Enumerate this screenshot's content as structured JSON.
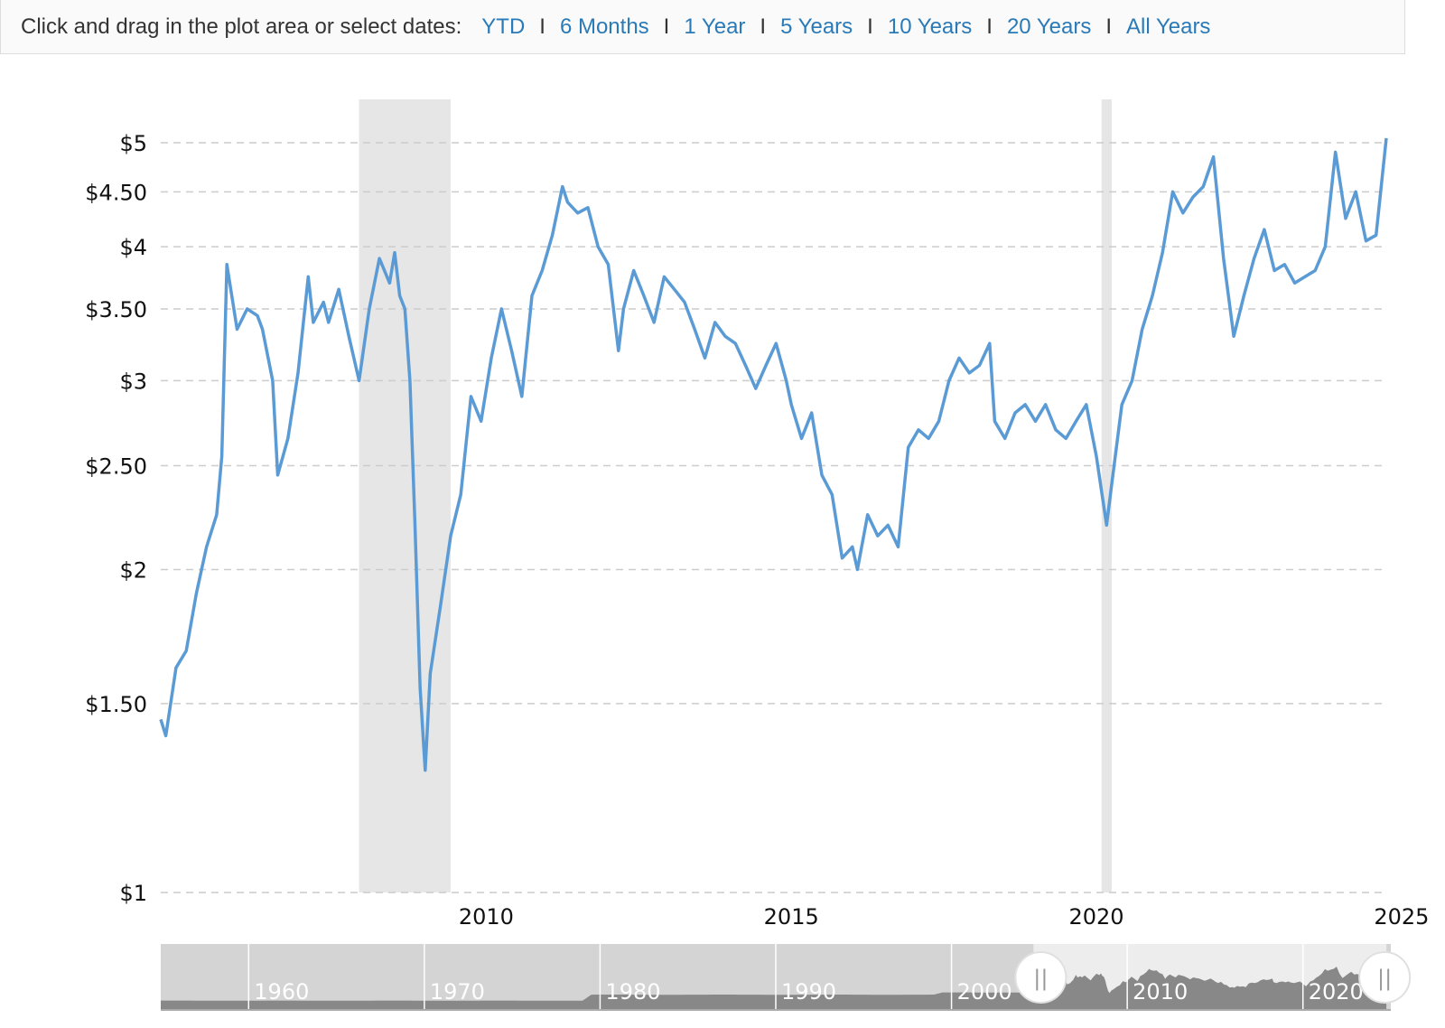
{
  "toolbar": {
    "prompt": "Click and drag in the plot area or select dates:",
    "ranges": [
      "YTD",
      "6 Months",
      "1 Year",
      "5 Years",
      "10 Years",
      "20 Years",
      "All Years"
    ]
  },
  "colors": {
    "line": "#5b9bd5",
    "recession": "#e6e6e6",
    "grid": "#cccccc",
    "navigator_bg": "#d4d4d4",
    "navigator_selected": "#ededed",
    "navigator_area": "#888888",
    "link": "#2a7ab8"
  },
  "chart_data": {
    "type": "line",
    "title": "",
    "xlabel": "",
    "ylabel": "",
    "y_scale": "log",
    "ylim": [
      1,
      5.1
    ],
    "xlim": [
      "2004-09-01",
      "2024-10-01"
    ],
    "yticks": [
      1,
      1.5,
      2,
      2.5,
      3,
      3.5,
      4,
      4.5,
      5
    ],
    "ytick_labels": [
      "$1",
      "$1.50",
      "$2",
      "$2.50",
      "$3",
      "$3.50",
      "$4",
      "$4.50",
      "$5"
    ],
    "xticks": [
      "2010",
      "2015",
      "2020",
      "2025"
    ],
    "grid": "horizontal dashed",
    "recessions": [
      [
        "2007-12-01",
        "2009-06-01"
      ],
      [
        "2020-02-01",
        "2020-04-01"
      ]
    ],
    "series": [
      {
        "x": [
          "2004-09",
          "2004-10",
          "2004-12",
          "2005-02",
          "2005-04",
          "2005-06",
          "2005-08",
          "2005-09",
          "2005-10",
          "2005-12",
          "2006-02",
          "2006-04",
          "2006-05",
          "2006-07",
          "2006-08",
          "2006-10",
          "2006-12",
          "2007-02",
          "2007-03",
          "2007-05",
          "2007-06",
          "2007-08",
          "2007-10",
          "2007-12",
          "2008-02",
          "2008-04",
          "2008-06",
          "2008-07",
          "2008-08",
          "2008-09",
          "2008-10",
          "2008-11",
          "2008-12",
          "2009-01",
          "2009-02",
          "2009-04",
          "2009-06",
          "2009-08",
          "2009-10",
          "2009-12",
          "2010-02",
          "2010-04",
          "2010-06",
          "2010-08",
          "2010-10",
          "2010-12",
          "2011-02",
          "2011-04",
          "2011-05",
          "2011-07",
          "2011-09",
          "2011-11",
          "2012-01",
          "2012-03",
          "2012-04",
          "2012-06",
          "2012-08",
          "2012-10",
          "2012-12",
          "2013-02",
          "2013-04",
          "2013-06",
          "2013-08",
          "2013-10",
          "2013-12",
          "2014-02",
          "2014-04",
          "2014-06",
          "2014-08",
          "2014-10",
          "2014-12",
          "2015-01",
          "2015-03",
          "2015-05",
          "2015-07",
          "2015-09",
          "2015-11",
          "2016-01",
          "2016-02",
          "2016-04",
          "2016-06",
          "2016-08",
          "2016-10",
          "2016-12",
          "2017-02",
          "2017-04",
          "2017-06",
          "2017-08",
          "2017-10",
          "2017-12",
          "2018-02",
          "2018-04",
          "2018-05",
          "2018-07",
          "2018-09",
          "2018-11",
          "2019-01",
          "2019-03",
          "2019-05",
          "2019-07",
          "2019-09",
          "2019-11",
          "2020-01",
          "2020-03",
          "2020-04",
          "2020-06",
          "2020-08",
          "2020-10",
          "2020-12",
          "2021-02",
          "2021-04",
          "2021-06",
          "2021-08",
          "2021-10",
          "2021-12",
          "2022-02",
          "2022-04",
          "2022-06",
          "2022-08",
          "2022-10",
          "2022-12",
          "2023-02",
          "2023-04",
          "2023-06",
          "2023-08",
          "2023-10",
          "2023-12",
          "2024-02",
          "2024-04",
          "2024-06",
          "2024-08",
          "2024-10"
        ],
        "values": [
          1.45,
          1.4,
          1.62,
          1.68,
          1.9,
          2.1,
          2.25,
          2.55,
          3.85,
          3.35,
          3.5,
          3.45,
          3.35,
          3.0,
          2.45,
          2.65,
          3.05,
          3.75,
          3.4,
          3.55,
          3.4,
          3.65,
          3.3,
          3.0,
          3.5,
          3.9,
          3.7,
          3.95,
          3.6,
          3.5,
          3.0,
          2.2,
          1.55,
          1.3,
          1.6,
          1.85,
          2.15,
          2.35,
          2.9,
          2.75,
          3.15,
          3.5,
          3.2,
          2.9,
          3.6,
          3.8,
          4.1,
          4.55,
          4.4,
          4.3,
          4.35,
          4.0,
          3.85,
          3.2,
          3.5,
          3.8,
          3.6,
          3.4,
          3.75,
          3.65,
          3.55,
          3.35,
          3.15,
          3.4,
          3.3,
          3.25,
          3.1,
          2.95,
          3.1,
          3.25,
          3.0,
          2.85,
          2.65,
          2.8,
          2.45,
          2.35,
          2.05,
          2.1,
          2.0,
          2.25,
          2.15,
          2.2,
          2.1,
          2.6,
          2.7,
          2.65,
          2.75,
          3.0,
          3.15,
          3.05,
          3.1,
          3.25,
          2.75,
          2.65,
          2.8,
          2.85,
          2.75,
          2.85,
          2.7,
          2.65,
          2.75,
          2.85,
          2.55,
          2.2,
          2.4,
          2.85,
          3.0,
          3.35,
          3.6,
          3.95,
          4.5,
          4.3,
          4.45,
          4.55,
          4.85,
          3.9,
          3.3,
          3.6,
          3.9,
          4.15,
          3.8,
          3.85,
          3.7,
          3.75,
          3.8,
          4.0,
          4.9,
          4.25,
          4.5,
          4.05,
          4.1,
          5.05
        ]
      }
    ]
  },
  "navigator": {
    "ticks": [
      "1960",
      "1970",
      "1980",
      "1990",
      "2000",
      "2010",
      "2020"
    ],
    "handle_left_label": "||",
    "handle_right_label": "||",
    "selected_range": [
      "2004-09",
      "2024-10"
    ]
  }
}
